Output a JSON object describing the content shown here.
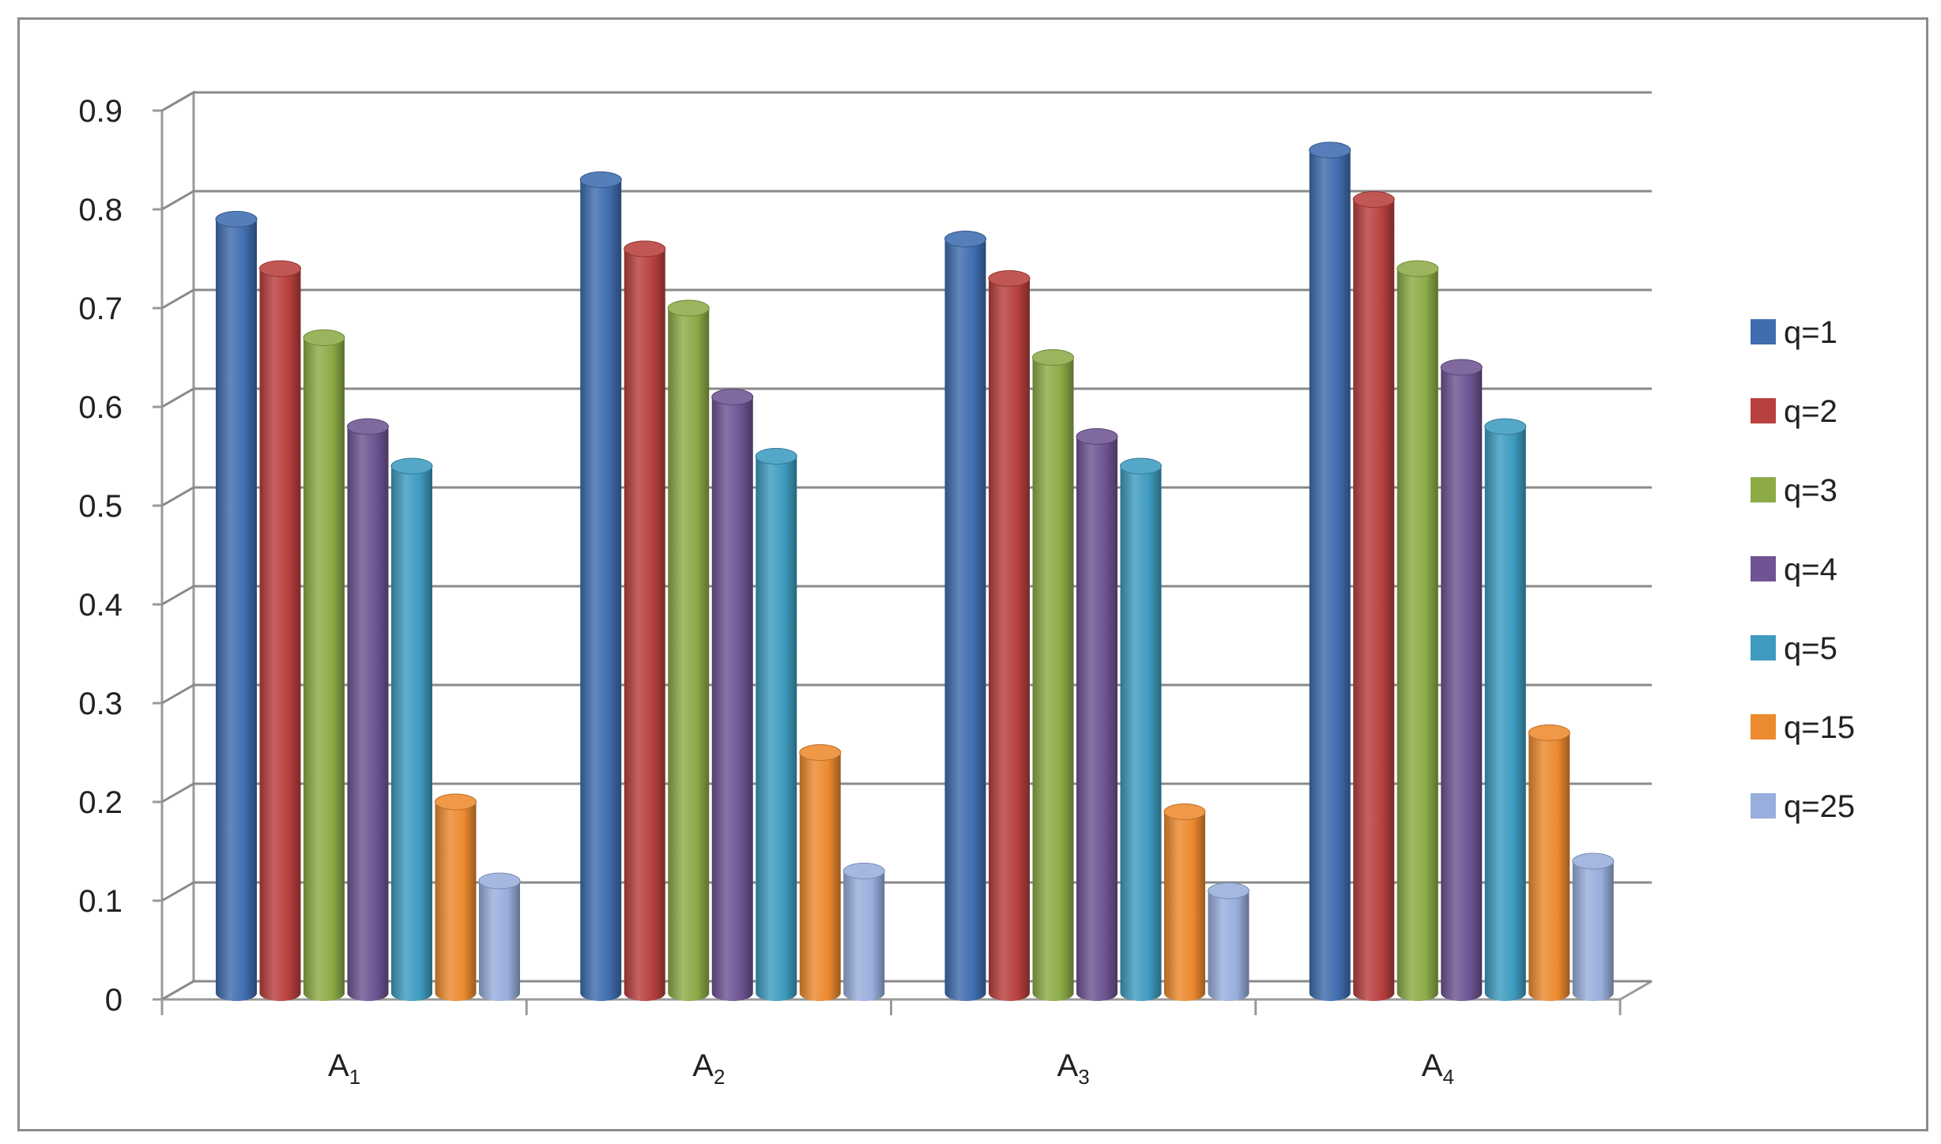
{
  "chart_data": {
    "type": "bar",
    "title": "",
    "xlabel": "",
    "ylabel": "",
    "ylim": [
      0,
      0.9
    ],
    "yticks": [
      "0",
      "0.1",
      "0.2",
      "0.3",
      "0.4",
      "0.5",
      "0.6",
      "0.7",
      "0.8",
      "0.9"
    ],
    "grid": true,
    "legend_position": "right",
    "categories": [
      {
        "base": "A",
        "sub": "1"
      },
      {
        "base": "A",
        "sub": "2"
      },
      {
        "base": "A",
        "sub": "3"
      },
      {
        "base": "A",
        "sub": "4"
      }
    ],
    "series": [
      {
        "name": "q=1",
        "color": "#3F6DAF",
        "values": [
          0.79,
          0.83,
          0.77,
          0.86
        ]
      },
      {
        "name": "q=2",
        "color": "#B8403E",
        "values": [
          0.74,
          0.76,
          0.73,
          0.81
        ]
      },
      {
        "name": "q=3",
        "color": "#8CAB47",
        "values": [
          0.67,
          0.7,
          0.65,
          0.74
        ]
      },
      {
        "name": "q=4",
        "color": "#6E5492",
        "values": [
          0.58,
          0.61,
          0.57,
          0.64
        ]
      },
      {
        "name": "q=5",
        "color": "#3E9BBF",
        "values": [
          0.54,
          0.55,
          0.54,
          0.58
        ]
      },
      {
        "name": "q=15",
        "color": "#EC8A2F",
        "values": [
          0.2,
          0.25,
          0.19,
          0.27
        ]
      },
      {
        "name": "q=25",
        "color": "#98AEDC",
        "values": [
          0.12,
          0.13,
          0.11,
          0.14
        ]
      }
    ]
  }
}
